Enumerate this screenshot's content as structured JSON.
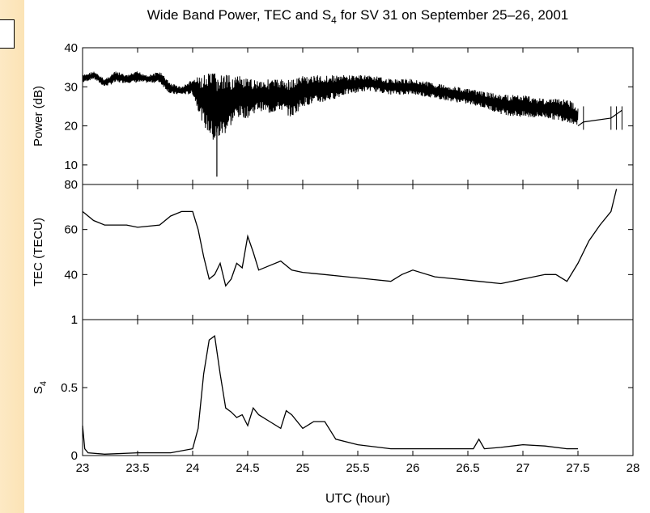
{
  "title": {
    "main": "Wide Band Power, TEC and S",
    "sub": "4",
    "rest": " for SV 31 on September 25–26, 2001"
  },
  "xlabel": "UTC (hour)",
  "colors": {
    "line": "#000000",
    "background": "#ffffff",
    "side_strip": "#fde9c4"
  },
  "chart_data": [
    {
      "type": "line",
      "panel": "power",
      "ylabel": "Power (dB)",
      "xlim": [
        23,
        28
      ],
      "ylim": [
        5,
        40
      ],
      "xticks": [
        23,
        23.5,
        24,
        24.5,
        25,
        25.5,
        26,
        26.5,
        27,
        27.5,
        28
      ],
      "yticks": [
        10,
        20,
        30,
        40
      ],
      "ytick_labels": [
        "10",
        "20",
        "30",
        "40"
      ],
      "x": [
        23.0,
        23.1,
        23.2,
        23.3,
        23.4,
        23.5,
        23.6,
        23.7,
        23.8,
        23.9,
        24.0,
        24.1,
        24.2,
        24.3,
        24.4,
        24.5,
        24.6,
        24.7,
        24.8,
        24.9,
        25.0,
        25.2,
        25.4,
        25.6,
        25.8,
        26.0,
        26.2,
        26.4,
        26.6,
        26.8,
        27.0,
        27.2,
        27.4,
        27.5
      ],
      "y": [
        32,
        33,
        31,
        33,
        32,
        33,
        32,
        33,
        30,
        29,
        30,
        27,
        25,
        26,
        27,
        28,
        29,
        28,
        28,
        29,
        29,
        30,
        31,
        31,
        30,
        30,
        29,
        28,
        27,
        26,
        25,
        25,
        24,
        22
      ],
      "env_low": [
        31,
        32,
        30,
        31,
        31,
        31,
        31,
        31,
        28,
        28,
        28,
        20,
        15,
        18,
        22,
        22,
        24,
        23,
        24,
        22,
        25,
        26,
        28,
        29,
        28,
        28,
        27,
        26,
        25,
        23,
        22,
        22,
        21,
        20
      ],
      "env_high": [
        33,
        34,
        32,
        34,
        33,
        34,
        33,
        34,
        31,
        30,
        32,
        33,
        34,
        33,
        33,
        32,
        32,
        32,
        32,
        32,
        33,
        33,
        33,
        33,
        32,
        32,
        31,
        30,
        29,
        28,
        28,
        27,
        27,
        25
      ],
      "spike": {
        "x": 24.22,
        "y": 7
      },
      "tail_x": [
        27.5,
        27.55,
        27.8,
        27.85,
        27.9
      ],
      "tail_y": [
        20,
        21,
        22,
        23,
        24
      ]
    },
    {
      "type": "line",
      "panel": "tec",
      "ylabel": "TEC (TECU)",
      "xlim": [
        23,
        28
      ],
      "ylim": [
        20,
        80
      ],
      "xticks": [
        23,
        23.5,
        24,
        24.5,
        25,
        25.5,
        26,
        26.5,
        27,
        27.5,
        28
      ],
      "yticks": [
        40,
        60,
        80
      ],
      "ytick_labels": [
        "40",
        "60",
        "80"
      ],
      "bottom_tick_label": "1",
      "x": [
        23.0,
        23.1,
        23.2,
        23.4,
        23.5,
        23.7,
        23.8,
        23.9,
        24.0,
        24.05,
        24.1,
        24.15,
        24.2,
        24.25,
        24.3,
        24.35,
        24.4,
        24.45,
        24.5,
        24.55,
        24.6,
        24.7,
        24.8,
        24.9,
        25.0,
        25.2,
        25.4,
        25.6,
        25.8,
        25.9,
        26.0,
        26.2,
        26.4,
        26.6,
        26.8,
        27.0,
        27.2,
        27.3,
        27.4,
        27.5,
        27.6,
        27.7,
        27.8,
        27.85
      ],
      "y": [
        68,
        64,
        62,
        62,
        61,
        62,
        66,
        68,
        68,
        60,
        48,
        38,
        40,
        45,
        35,
        38,
        45,
        43,
        57,
        50,
        42,
        44,
        46,
        42,
        41,
        40,
        39,
        38,
        37,
        40,
        42,
        39,
        38,
        37,
        36,
        38,
        40,
        40,
        37,
        45,
        55,
        62,
        68,
        78
      ]
    },
    {
      "type": "line",
      "panel": "s4",
      "ylabel": "S",
      "ylabel_sub": "4",
      "xlim": [
        23,
        28
      ],
      "ylim": [
        0,
        1
      ],
      "xticks": [
        23,
        23.5,
        24,
        24.5,
        25,
        25.5,
        26,
        26.5,
        27,
        27.5,
        28
      ],
      "xtick_labels": [
        "23",
        "23.5",
        "24",
        "24.5",
        "25",
        "25.5",
        "26",
        "26.5",
        "27",
        "27.5",
        "28"
      ],
      "yticks": [
        0,
        0.5,
        1
      ],
      "ytick_labels": [
        "0",
        "0.5",
        "1"
      ],
      "x": [
        23.0,
        23.02,
        23.05,
        23.2,
        23.5,
        23.8,
        24.0,
        24.05,
        24.1,
        24.15,
        24.2,
        24.25,
        24.3,
        24.35,
        24.4,
        24.45,
        24.5,
        24.55,
        24.6,
        24.7,
        24.8,
        24.85,
        24.9,
        25.0,
        25.1,
        25.2,
        25.3,
        25.5,
        25.8,
        26.0,
        26.3,
        26.55,
        26.6,
        26.65,
        26.8,
        27.0,
        27.2,
        27.4,
        27.5
      ],
      "y": [
        0.22,
        0.05,
        0.02,
        0.01,
        0.02,
        0.02,
        0.05,
        0.2,
        0.6,
        0.85,
        0.88,
        0.6,
        0.35,
        0.32,
        0.28,
        0.3,
        0.22,
        0.35,
        0.3,
        0.25,
        0.2,
        0.33,
        0.3,
        0.2,
        0.25,
        0.25,
        0.12,
        0.08,
        0.05,
        0.05,
        0.05,
        0.05,
        0.12,
        0.05,
        0.06,
        0.08,
        0.07,
        0.05,
        0.05
      ]
    }
  ]
}
